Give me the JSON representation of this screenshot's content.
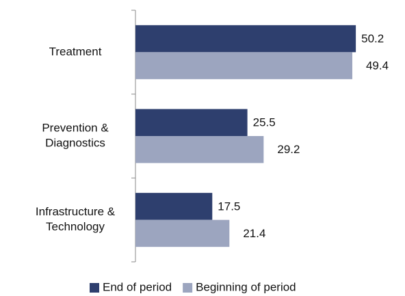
{
  "chart_data": {
    "type": "hbar",
    "categories": [
      [
        "Treatment"
      ],
      [
        "Prevention &",
        "Diagnostics"
      ],
      [
        "Infrastructure &",
        "Technology"
      ]
    ],
    "series": [
      {
        "name": "End of period",
        "color": "#2e3f6e",
        "values": [
          50.2,
          25.5,
          17.5
        ]
      },
      {
        "name": "Beginning of period",
        "color": "#9ca5bf",
        "values": [
          49.4,
          29.2,
          21.4
        ]
      }
    ],
    "xlim": [
      0,
      60
    ],
    "legend": "bottom"
  }
}
